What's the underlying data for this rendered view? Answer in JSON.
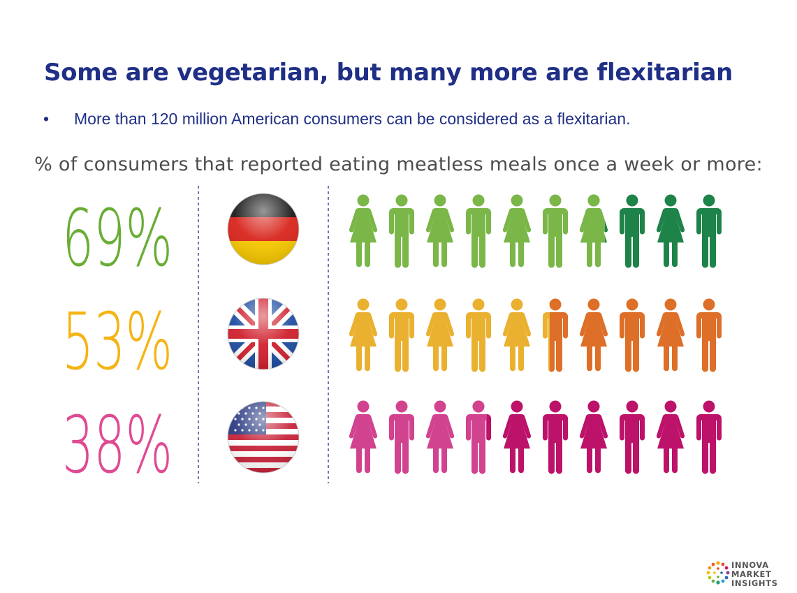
{
  "slide": {
    "title": "Some are vegetarian, but many more are flexitarian",
    "bullet": "•",
    "bullet_text": "More than 120 million American consumers can be considered as a flexitarian."
  },
  "logo": {
    "line1": "INNOVA",
    "line2": "MARKET",
    "line3": "INSIGHTS"
  },
  "chart_data": {
    "type": "pictograph",
    "title": "% of consumers that reported eating meatless meals once a week or more:",
    "unit": "%",
    "icons_per_row": 10,
    "rows": [
      {
        "country": "Germany",
        "flag-icon": "germany-flag-icon",
        "value": 69,
        "label": "69%",
        "color": "#7ab648",
        "rest_color": "#1e8348",
        "filled_icons": 6.9
      },
      {
        "country": "United Kingdom",
        "flag-icon": "uk-flag-icon",
        "value": 53,
        "label": "53%",
        "color": "#eab130",
        "rest_color": "#dd6f28",
        "filled_icons": 5.3
      },
      {
        "country": "United States",
        "flag-icon": "usa-flag-icon",
        "value": 38,
        "label": "38%",
        "color": "#d2438f",
        "rest_color": "#bd1269",
        "filled_icons": 3.8
      }
    ],
    "label_colors": [
      "#69ad34",
      "#f4b414",
      "#df4b93"
    ]
  }
}
